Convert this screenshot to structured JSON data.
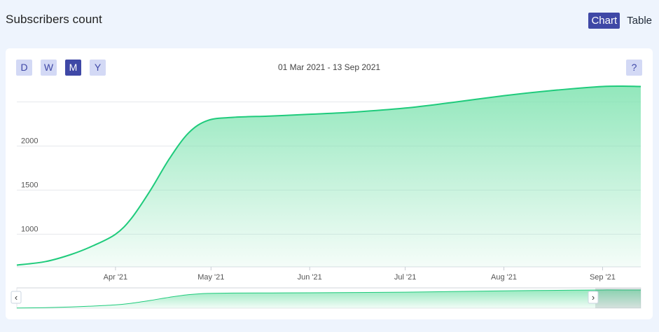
{
  "header": {
    "title": "Subscribers count"
  },
  "view_toggle": {
    "chart_label": "Chart",
    "table_label": "Table",
    "active": "chart"
  },
  "periods": [
    {
      "label": "D",
      "active": false
    },
    {
      "label": "W",
      "active": false
    },
    {
      "label": "M",
      "active": true
    },
    {
      "label": "Y",
      "active": false
    }
  ],
  "date_range": "01 Mar 2021 - 13 Sep 2021",
  "help_label": "?",
  "navigator": {
    "left_handle": "‹",
    "right_handle": "›"
  },
  "colors": {
    "line": "#1fcb7c",
    "fill": "#7fe3b0",
    "accent": "#3f48a6",
    "button_bg": "#d3d9f5"
  },
  "chart_data": {
    "type": "area",
    "title": "",
    "xlabel": "",
    "ylabel": "",
    "ylim": [
      630,
      2750
    ],
    "y_ticks": [
      1000,
      1500,
      2000,
      2500
    ],
    "y_tick_labels": [
      "1000",
      "1500",
      "2000",
      ""
    ],
    "x_ticks": [
      {
        "label": "Apr '21",
        "date": "2021-04-01"
      },
      {
        "label": "May '21",
        "date": "2021-05-01"
      },
      {
        "label": "Jun '21",
        "date": "2021-06-01"
      },
      {
        "label": "Jul '21",
        "date": "2021-07-01"
      },
      {
        "label": "Aug '21",
        "date": "2021-08-01"
      },
      {
        "label": "Sep '21",
        "date": "2021-09-01"
      }
    ],
    "x_range": [
      "2021-03-01",
      "2021-09-13"
    ],
    "grid": true,
    "series": [
      {
        "points": [
          {
            "x": "2021-03-01",
            "y": 650
          },
          {
            "x": "2021-03-10",
            "y": 690
          },
          {
            "x": "2021-03-18",
            "y": 770
          },
          {
            "x": "2021-03-25",
            "y": 870
          },
          {
            "x": "2021-04-01",
            "y": 1000
          },
          {
            "x": "2021-04-06",
            "y": 1180
          },
          {
            "x": "2021-04-12",
            "y": 1500
          },
          {
            "x": "2021-04-18",
            "y": 1860
          },
          {
            "x": "2021-04-24",
            "y": 2150
          },
          {
            "x": "2021-04-30",
            "y": 2290
          },
          {
            "x": "2021-05-08",
            "y": 2325
          },
          {
            "x": "2021-05-20",
            "y": 2340
          },
          {
            "x": "2021-06-01",
            "y": 2360
          },
          {
            "x": "2021-06-15",
            "y": 2385
          },
          {
            "x": "2021-07-01",
            "y": 2430
          },
          {
            "x": "2021-07-15",
            "y": 2490
          },
          {
            "x": "2021-08-01",
            "y": 2570
          },
          {
            "x": "2021-08-15",
            "y": 2625
          },
          {
            "x": "2021-09-01",
            "y": 2675
          },
          {
            "x": "2021-09-13",
            "y": 2675
          }
        ]
      }
    ]
  }
}
